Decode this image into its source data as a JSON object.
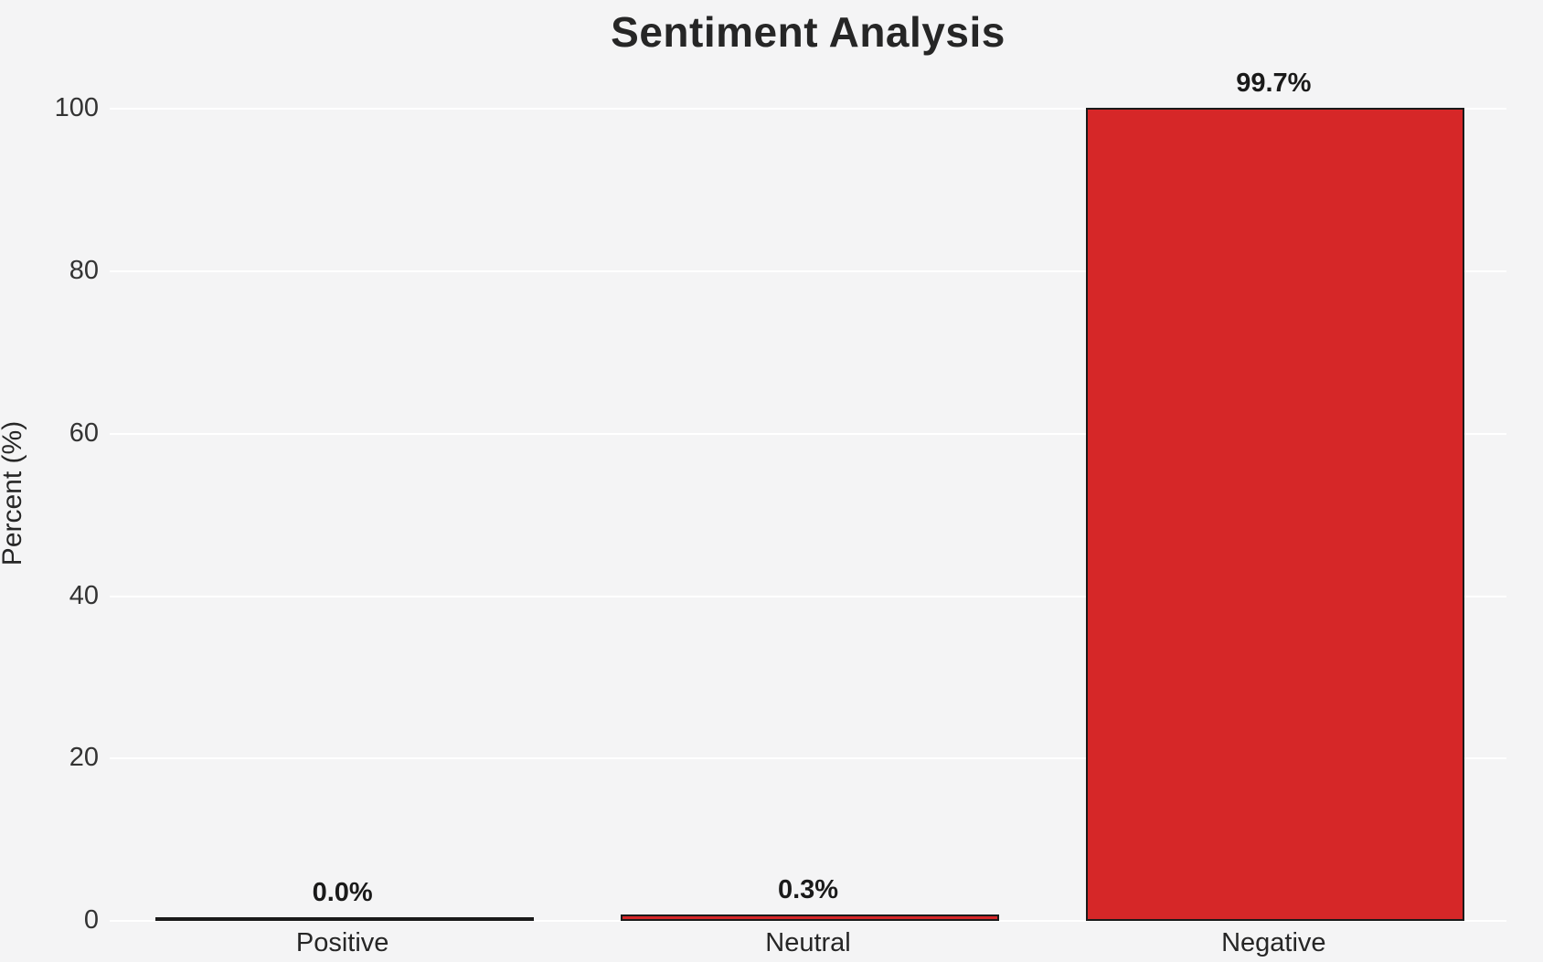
{
  "page": {
    "background": "#f4f4f5"
  },
  "chart_data": {
    "type": "bar",
    "title": "Sentiment Analysis",
    "xlabel": "",
    "ylabel": "Percent (%)",
    "categories": [
      "Positive",
      "Neutral",
      "Negative"
    ],
    "values": [
      0.0,
      0.3,
      99.7
    ],
    "bar_labels": [
      "0.0%",
      "0.3%",
      "99.7%"
    ],
    "yticks": [
      0,
      20,
      40,
      60,
      80,
      100
    ],
    "ylim": [
      0,
      105
    ],
    "grid": true,
    "legend_position": "none",
    "colors": {
      "bar_fill": "#d62728",
      "bar_edge": "#1a1a1a",
      "grid_line": "#ffffff",
      "background": "#f4f4f5",
      "title_text": "#262626",
      "tick_text": "#333333",
      "value_label_text": "#1a1a1a"
    }
  }
}
